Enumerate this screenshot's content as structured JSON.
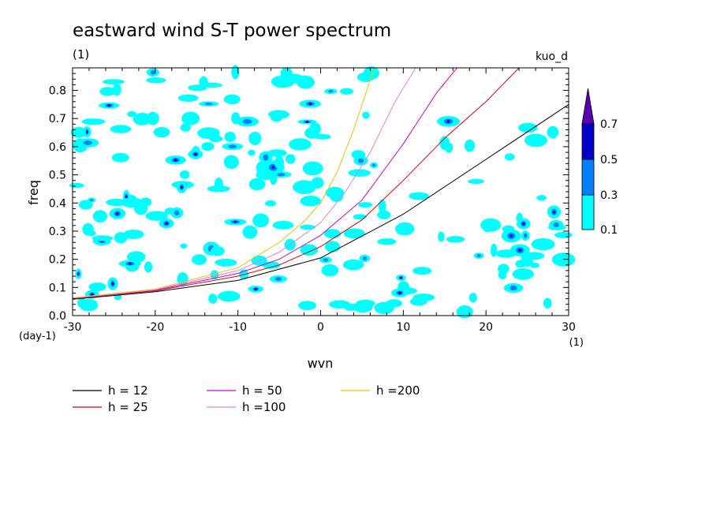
{
  "chart_data": {
    "type": "line",
    "title": "eastward wind S-T power spectrum",
    "subtitle": "(1)",
    "label_right": "kuo_d",
    "xlabel": "wvn",
    "ylabel": "freq",
    "x_unit": "(1)",
    "y_unit": "(day-1)",
    "xlim": [
      -30,
      30
    ],
    "ylim": [
      0,
      0.88
    ],
    "x_ticks": [
      "-30",
      "-20",
      "-10",
      "0",
      "10",
      "20",
      "30"
    ],
    "y_ticks": [
      "0.0",
      "0.1",
      "0.2",
      "0.3",
      "0.4",
      "0.5",
      "0.6",
      "0.7",
      "0.8"
    ],
    "colorbar": {
      "levels": [
        "0.1",
        "0.3",
        "0.5",
        "0.7"
      ],
      "colors": [
        "#00ffff",
        "#0080ff",
        "#0000c8",
        "#5a00b0"
      ]
    },
    "series": [
      {
        "name": "h = 12",
        "color": "#000000",
        "x": [
          -30,
          -20,
          -10,
          0,
          10,
          20,
          30
        ],
        "y": [
          0.058,
          0.085,
          0.125,
          0.205,
          0.36,
          0.555,
          0.75
        ]
      },
      {
        "name": "h = 25",
        "color": "#e00000",
        "x": [
          -30,
          -20,
          -10,
          -5,
          0,
          5,
          10,
          15,
          20,
          24
        ],
        "y": [
          0.06,
          0.088,
          0.14,
          0.18,
          0.245,
          0.34,
          0.48,
          0.63,
          0.76,
          0.88
        ]
      },
      {
        "name": "h = 50",
        "color": "#d000d0",
        "x": [
          -30,
          -20,
          -10,
          -5,
          0,
          5,
          10,
          14,
          16.5
        ],
        "y": [
          0.061,
          0.09,
          0.15,
          0.2,
          0.285,
          0.41,
          0.61,
          0.79,
          0.88
        ]
      },
      {
        "name": "h =100",
        "color": "#e080e0",
        "x": [
          -30,
          -20,
          -10,
          -5,
          0,
          3,
          6,
          9,
          11.5
        ],
        "y": [
          0.062,
          0.092,
          0.16,
          0.225,
          0.33,
          0.44,
          0.58,
          0.76,
          0.88
        ]
      },
      {
        "name": "h =200",
        "color": "#f0c000",
        "x": [
          -30,
          -20,
          -10,
          -5,
          -2,
          0,
          2,
          4,
          6.5
        ],
        "y": [
          0.063,
          0.094,
          0.17,
          0.26,
          0.335,
          0.4,
          0.51,
          0.66,
          0.88
        ]
      }
    ]
  }
}
